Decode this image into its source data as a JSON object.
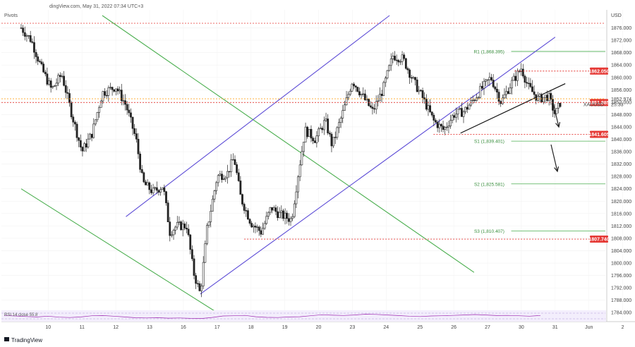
{
  "header": {
    "text": "dingView.com, May 31, 2022 07:34 UTC+3",
    "indicator": "Pivots",
    "currency": "USD",
    "rsi_label": "RSI 14 close 55.8"
  },
  "footer": {
    "brand": "TradingView"
  },
  "colors": {
    "candle": "#222222",
    "resistance": "#e53935",
    "pivot_green": "#4caf50",
    "channel_purple": "#5c4bd6",
    "trendline": "#111111",
    "current_price": "#ffa726",
    "rsi": "#9c27b0"
  },
  "chart_data": {
    "type": "candlestick",
    "symbol": "XAUUSD",
    "ylim": [
      1782,
      1880
    ],
    "xlim": [
      0,
      21.5
    ],
    "y_ticks": [
      1784,
      1788,
      1792,
      1796,
      1800,
      1804,
      1808,
      1812,
      1816,
      1820,
      1824,
      1828,
      1832,
      1836,
      1840,
      1844,
      1848,
      1852,
      1856,
      1860,
      1864,
      1868,
      1872,
      1876
    ],
    "x_ticks": [
      {
        "x": 0.8,
        "label": "10"
      },
      {
        "x": 1.8,
        "label": "11"
      },
      {
        "x": 2.8,
        "label": "12"
      },
      {
        "x": 3.8,
        "label": "13"
      },
      {
        "x": 4.8,
        "label": "16"
      },
      {
        "x": 5.8,
        "label": "17"
      },
      {
        "x": 6.8,
        "label": "18"
      },
      {
        "x": 7.8,
        "label": "19"
      },
      {
        "x": 8.8,
        "label": "20"
      },
      {
        "x": 9.8,
        "label": "23"
      },
      {
        "x": 10.8,
        "label": "24"
      },
      {
        "x": 11.8,
        "label": "25"
      },
      {
        "x": 12.8,
        "label": "26"
      },
      {
        "x": 13.8,
        "label": "27"
      },
      {
        "x": 14.8,
        "label": "30"
      },
      {
        "x": 15.8,
        "label": "31"
      },
      {
        "x": 16.8,
        "label": "Jun"
      },
      {
        "x": 17.8,
        "label": "2"
      }
    ],
    "price_path": [
      [
        0,
        1876
      ],
      [
        0.3,
        1872
      ],
      [
        0.6,
        1863
      ],
      [
        0.9,
        1856
      ],
      [
        1.2,
        1861
      ],
      [
        1.5,
        1848
      ],
      [
        1.8,
        1836
      ],
      [
        2.1,
        1842
      ],
      [
        2.4,
        1855
      ],
      [
        2.8,
        1857
      ],
      [
        3.1,
        1851
      ],
      [
        3.4,
        1840
      ],
      [
        3.6,
        1826
      ],
      [
        3.9,
        1823
      ],
      [
        4.2,
        1825
      ],
      [
        4.4,
        1810
      ],
      [
        4.6,
        1812
      ],
      [
        4.9,
        1812
      ],
      [
        5.1,
        1797
      ],
      [
        5.3,
        1790
      ],
      [
        5.5,
        1811
      ],
      [
        5.8,
        1828
      ],
      [
        6.1,
        1829
      ],
      [
        6.3,
        1834
      ],
      [
        6.5,
        1821
      ],
      [
        6.8,
        1813
      ],
      [
        7.1,
        1810
      ],
      [
        7.4,
        1818
      ],
      [
        7.6,
        1816
      ],
      [
        8.0,
        1814
      ],
      [
        8.2,
        1829
      ],
      [
        8.4,
        1843
      ],
      [
        8.7,
        1840
      ],
      [
        9.0,
        1846
      ],
      [
        9.2,
        1838
      ],
      [
        9.5,
        1848
      ],
      [
        9.8,
        1859
      ],
      [
        10.1,
        1854
      ],
      [
        10.4,
        1849
      ],
      [
        10.7,
        1856
      ],
      [
        11.0,
        1867
      ],
      [
        11.3,
        1866
      ],
      [
        11.6,
        1859
      ],
      [
        11.9,
        1853
      ],
      [
        12.2,
        1846
      ],
      [
        12.5,
        1843
      ],
      [
        12.8,
        1848
      ],
      [
        13.1,
        1849
      ],
      [
        13.4,
        1853
      ],
      [
        13.6,
        1856
      ],
      [
        13.9,
        1860
      ],
      [
        14.2,
        1852
      ],
      [
        14.5,
        1858
      ],
      [
        14.8,
        1863
      ],
      [
        15.0,
        1857
      ],
      [
        15.3,
        1853
      ],
      [
        15.6,
        1854
      ],
      [
        15.8,
        1848
      ],
      [
        16.0,
        1853
      ]
    ],
    "key_levels": [
      {
        "label": "1862.050",
        "value": 1862.05
      },
      {
        "label": "1851.885",
        "value": 1851.885
      },
      {
        "label": "1841.605",
        "value": 1841.605
      },
      {
        "label": "1807.740",
        "value": 1807.74
      }
    ],
    "pivots": [
      {
        "label": "R1 (1,868.395)",
        "value": 1868.395
      },
      {
        "label": "S1 (1,839.401)",
        "value": 1839.401
      },
      {
        "label": "S2 (1,825.581)",
        "value": 1825.581
      },
      {
        "label": "S3 (1,810.407)",
        "value": 1810.407
      }
    ],
    "current_price": {
      "label": "1852.974",
      "value": 1852.974,
      "symbol": "XAUUSD",
      "countdown": "25:33"
    },
    "top_level": {
      "value": 1877.5
    },
    "channels": [
      {
        "name": "descending-upper",
        "points": [
          [
            2.4,
            1880
          ],
          [
            13.4,
            1797
          ]
        ]
      },
      {
        "name": "descending-lower",
        "points": [
          [
            0,
            1824
          ],
          [
            5.8,
            1784
          ]
        ]
      },
      {
        "name": "ascending-upper",
        "points": [
          [
            3.1,
            1815
          ],
          [
            10.9,
            1880
          ]
        ]
      },
      {
        "name": "ascending-lower",
        "points": [
          [
            5.3,
            1790
          ],
          [
            15.8,
            1873
          ]
        ]
      }
    ],
    "trendline": {
      "points": [
        [
          13.0,
          1842
        ],
        [
          16.1,
          1858
        ]
      ]
    },
    "rsi": [
      55,
      50,
      44,
      40,
      48,
      38,
      34,
      40,
      52,
      54,
      48,
      40,
      32,
      30,
      33,
      28,
      30,
      26,
      24,
      35,
      50,
      52,
      56,
      42,
      36,
      34,
      40,
      42,
      52,
      62,
      58,
      55,
      60,
      68,
      66,
      60,
      54,
      48,
      44,
      50,
      52,
      56,
      60,
      64,
      60,
      54,
      56,
      52,
      48,
      55
    ]
  }
}
